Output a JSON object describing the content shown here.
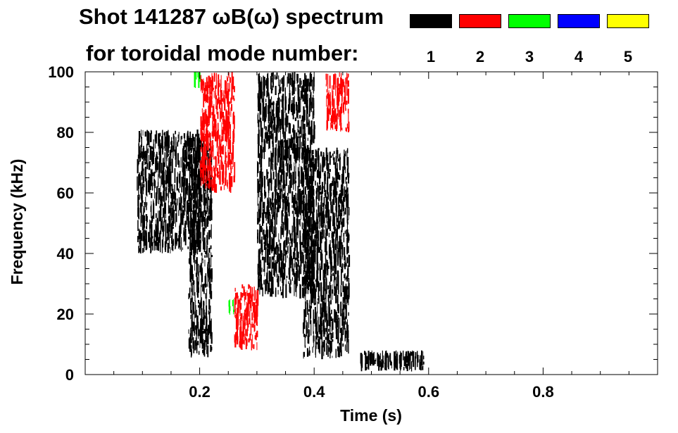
{
  "title_line1": "Shot 141287 ωB(ω) spectrum",
  "title_line2": "for toroidal mode number:",
  "legend": [
    {
      "label": "1",
      "color": "#000000"
    },
    {
      "label": "2",
      "color": "#ff0000"
    },
    {
      "label": "3",
      "color": "#00ff00"
    },
    {
      "label": "4",
      "color": "#0000ff"
    },
    {
      "label": "5",
      "color": "#ffff00"
    }
  ],
  "chart_data": {
    "type": "heatmap",
    "title": "Shot 141287 ωB(ω) spectrum",
    "xlabel": "Time (s)",
    "ylabel": "Frequency (kHz)",
    "xlim": [
      0.0,
      1.0
    ],
    "ylim": [
      0,
      100
    ],
    "xticks": [
      0.2,
      0.4,
      0.6,
      0.8
    ],
    "xtick_labels": [
      "0.2",
      "0.4",
      "0.6",
      "0.8"
    ],
    "yticks": [
      0,
      20,
      40,
      60,
      80,
      100
    ],
    "ytick_labels": [
      "0",
      "20",
      "40",
      "60",
      "80",
      "100"
    ],
    "grid": false,
    "legend_position": "top-right",
    "series": [
      {
        "name": "1",
        "color": "#000000",
        "regions": [
          {
            "t": [
              0.09,
              0.2
            ],
            "f": [
              40,
              81
            ]
          },
          {
            "t": [
              0.18,
              0.22
            ],
            "f": [
              5,
              80
            ]
          },
          {
            "t": [
              0.3,
              0.4
            ],
            "f": [
              25,
              100
            ]
          },
          {
            "t": [
              0.38,
              0.46
            ],
            "f": [
              5,
              75
            ]
          },
          {
            "t": [
              0.48,
              0.59
            ],
            "f": [
              1,
              8
            ]
          }
        ]
      },
      {
        "name": "2",
        "color": "#ff0000",
        "regions": [
          {
            "t": [
              0.2,
              0.26
            ],
            "f": [
              60,
              100
            ]
          },
          {
            "t": [
              0.26,
              0.3
            ],
            "f": [
              8,
              30
            ]
          },
          {
            "t": [
              0.42,
              0.46
            ],
            "f": [
              80,
              100
            ]
          }
        ]
      },
      {
        "name": "3",
        "color": "#00ff00",
        "regions": [
          {
            "t": [
              0.25,
              0.26
            ],
            "f": [
              20,
              25
            ]
          },
          {
            "t": [
              0.19,
              0.2
            ],
            "f": [
              98,
              100
            ]
          }
        ]
      },
      {
        "name": "4",
        "color": "#0000ff",
        "regions": []
      },
      {
        "name": "5",
        "color": "#ffff00",
        "regions": []
      }
    ]
  }
}
